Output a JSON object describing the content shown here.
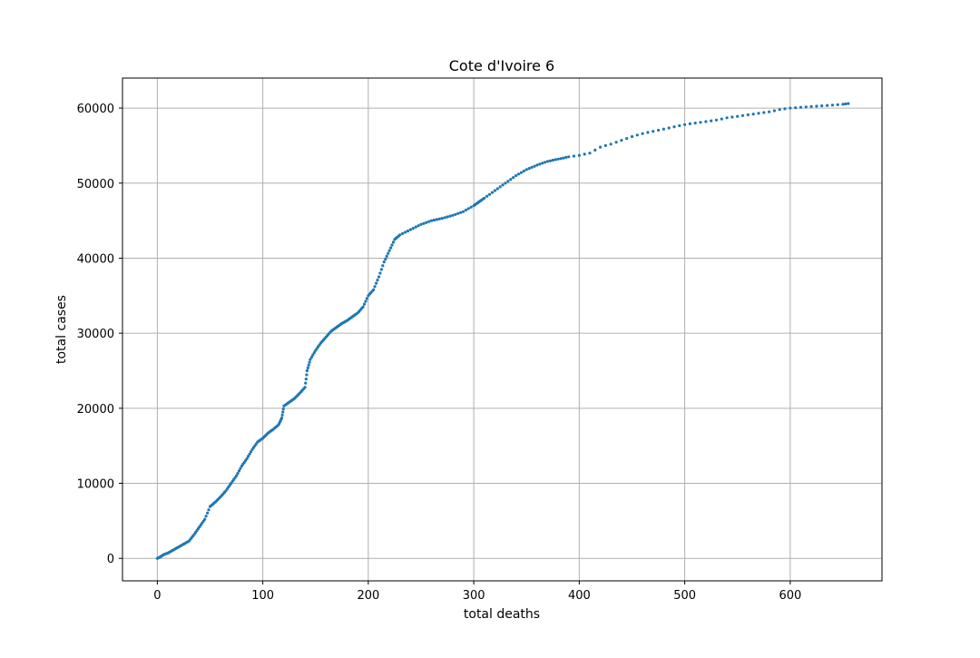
{
  "chart_data": {
    "type": "scatter",
    "title": "Cote d'Ivoire 6",
    "xlabel": "total deaths",
    "ylabel": "total cases",
    "xlim": [
      -33,
      687
    ],
    "ylim": [
      -3000,
      64000
    ],
    "xticks": [
      0,
      100,
      200,
      300,
      400,
      500,
      600
    ],
    "yticks": [
      0,
      10000,
      20000,
      30000,
      40000,
      50000,
      60000
    ],
    "grid": true,
    "marker_color": "#1f77b4",
    "curve": [
      [
        0,
        0
      ],
      [
        3,
        200
      ],
      [
        6,
        500
      ],
      [
        10,
        700
      ],
      [
        15,
        1100
      ],
      [
        20,
        1500
      ],
      [
        25,
        1900
      ],
      [
        30,
        2300
      ],
      [
        35,
        3200
      ],
      [
        40,
        4200
      ],
      [
        45,
        5200
      ],
      [
        50,
        6900
      ],
      [
        55,
        7500
      ],
      [
        60,
        8200
      ],
      [
        65,
        9000
      ],
      [
        70,
        10000
      ],
      [
        75,
        11000
      ],
      [
        80,
        12300
      ],
      [
        85,
        13300
      ],
      [
        90,
        14500
      ],
      [
        95,
        15500
      ],
      [
        100,
        16000
      ],
      [
        105,
        16700
      ],
      [
        110,
        17200
      ],
      [
        115,
        17800
      ],
      [
        118,
        18700
      ],
      [
        120,
        20300
      ],
      [
        125,
        20800
      ],
      [
        130,
        21300
      ],
      [
        135,
        22000
      ],
      [
        140,
        22800
      ],
      [
        142,
        25000
      ],
      [
        145,
        26500
      ],
      [
        150,
        27700
      ],
      [
        155,
        28700
      ],
      [
        160,
        29500
      ],
      [
        165,
        30300
      ],
      [
        170,
        30800
      ],
      [
        175,
        31300
      ],
      [
        180,
        31700
      ],
      [
        185,
        32200
      ],
      [
        190,
        32700
      ],
      [
        195,
        33500
      ],
      [
        200,
        35000
      ],
      [
        205,
        35800
      ],
      [
        210,
        37500
      ],
      [
        215,
        39500
      ],
      [
        220,
        41000
      ],
      [
        225,
        42500
      ],
      [
        230,
        43100
      ],
      [
        240,
        43800
      ],
      [
        250,
        44500
      ],
      [
        260,
        45000
      ],
      [
        270,
        45300
      ],
      [
        280,
        45700
      ],
      [
        290,
        46200
      ],
      [
        300,
        47000
      ],
      [
        305,
        47500
      ],
      [
        310,
        48000
      ],
      [
        320,
        49000
      ],
      [
        330,
        50000
      ],
      [
        340,
        51000
      ],
      [
        350,
        51800
      ],
      [
        360,
        52400
      ],
      [
        370,
        52900
      ],
      [
        380,
        53200
      ],
      [
        390,
        53500
      ],
      [
        400,
        53700
      ],
      [
        410,
        54000
      ],
      [
        420,
        54800
      ],
      [
        430,
        55200
      ],
      [
        440,
        55700
      ],
      [
        450,
        56200
      ],
      [
        460,
        56600
      ],
      [
        470,
        56900
      ],
      [
        480,
        57200
      ],
      [
        490,
        57500
      ],
      [
        500,
        57800
      ],
      [
        510,
        58000
      ],
      [
        520,
        58200
      ],
      [
        530,
        58400
      ],
      [
        540,
        58700
      ],
      [
        550,
        58900
      ],
      [
        560,
        59100
      ],
      [
        570,
        59300
      ],
      [
        580,
        59500
      ],
      [
        590,
        59800
      ],
      [
        600,
        60000
      ],
      [
        610,
        60100
      ],
      [
        620,
        60200
      ],
      [
        630,
        60300
      ],
      [
        640,
        60400
      ],
      [
        650,
        60500
      ],
      [
        655,
        60600
      ]
    ]
  }
}
